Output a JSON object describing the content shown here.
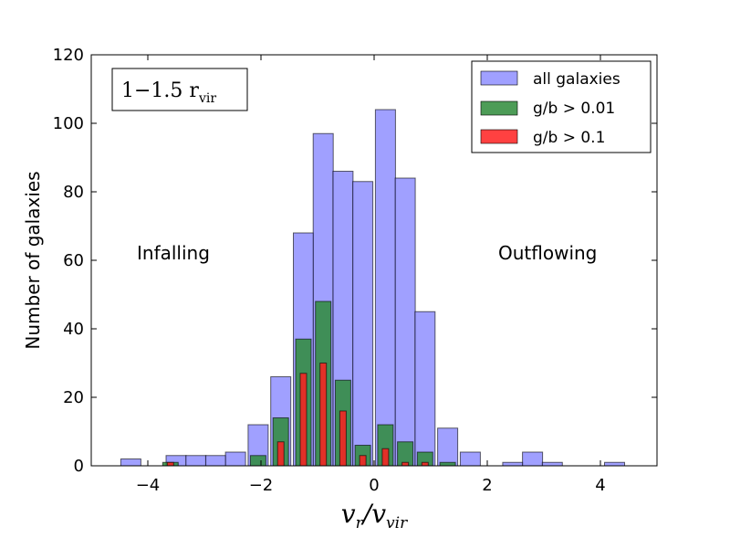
{
  "chart_data": {
    "type": "bar",
    "title": "",
    "xlabel": "v_r/v_vir",
    "ylabel": "Number of galaxies",
    "xlim": [
      -5,
      5
    ],
    "ylim": [
      0,
      120
    ],
    "xticks": [
      -4,
      -2,
      0,
      2,
      4
    ],
    "xtick_labels": [
      "−4",
      "−2",
      "0",
      "2",
      "4"
    ],
    "yticks": [
      0,
      20,
      40,
      60,
      80,
      100,
      120
    ],
    "ytick_labels": [
      "0",
      "20",
      "40",
      "60",
      "80",
      "100",
      "120"
    ],
    "grid": false,
    "legend_position": "top-right",
    "series": [
      {
        "name": "all galaxies",
        "color": "#8080ff",
        "points": [
          {
            "x": -4.3,
            "y": 2
          },
          {
            "x": -3.5,
            "y": 3
          },
          {
            "x": -3.15,
            "y": 3
          },
          {
            "x": -2.8,
            "y": 3
          },
          {
            "x": -2.45,
            "y": 4
          },
          {
            "x": -2.05,
            "y": 12
          },
          {
            "x": -1.65,
            "y": 26
          },
          {
            "x": -1.25,
            "y": 68
          },
          {
            "x": -0.9,
            "y": 97
          },
          {
            "x": -0.55,
            "y": 86
          },
          {
            "x": -0.2,
            "y": 83
          },
          {
            "x": 0.2,
            "y": 104
          },
          {
            "x": 0.55,
            "y": 84
          },
          {
            "x": 0.9,
            "y": 45
          },
          {
            "x": 1.3,
            "y": 11
          },
          {
            "x": 1.7,
            "y": 4
          },
          {
            "x": 2.45,
            "y": 1
          },
          {
            "x": 2.8,
            "y": 4
          },
          {
            "x": 3.15,
            "y": 1
          },
          {
            "x": 4.25,
            "y": 1
          }
        ]
      },
      {
        "name": "g/b > 0.01",
        "color": "#2e8b3a",
        "points": [
          {
            "x": -3.6,
            "y": 1
          },
          {
            "x": -2.05,
            "y": 3
          },
          {
            "x": -1.65,
            "y": 14
          },
          {
            "x": -1.25,
            "y": 37
          },
          {
            "x": -0.9,
            "y": 48
          },
          {
            "x": -0.55,
            "y": 25
          },
          {
            "x": -0.2,
            "y": 6
          },
          {
            "x": 0.2,
            "y": 12
          },
          {
            "x": 0.55,
            "y": 7
          },
          {
            "x": 0.9,
            "y": 4
          },
          {
            "x": 1.3,
            "y": 1
          }
        ]
      },
      {
        "name": "g/b > 0.1",
        "color": "#ff2020",
        "points": [
          {
            "x": -3.6,
            "y": 1
          },
          {
            "x": -1.65,
            "y": 7
          },
          {
            "x": -1.25,
            "y": 27
          },
          {
            "x": -0.9,
            "y": 30
          },
          {
            "x": -0.55,
            "y": 16
          },
          {
            "x": -0.2,
            "y": 3
          },
          {
            "x": 0.2,
            "y": 5
          },
          {
            "x": 0.55,
            "y": 1
          },
          {
            "x": 0.9,
            "y": 1
          }
        ]
      }
    ],
    "annotations": {
      "inset_label": "1−1.5  r_vir",
      "left": "Infalling",
      "right": "Outflowing"
    }
  }
}
